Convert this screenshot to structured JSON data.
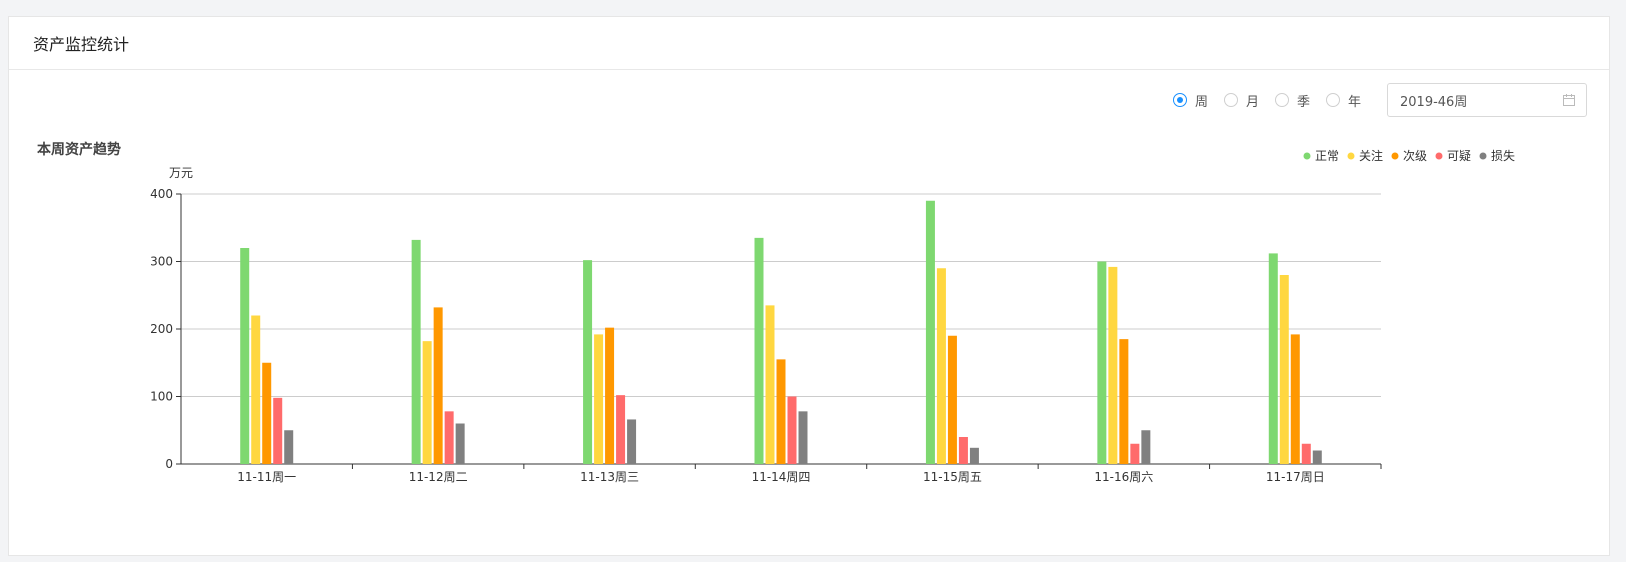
{
  "card": {
    "title": "资产监控统计"
  },
  "toolbar": {
    "period_options": [
      {
        "label": "周",
        "checked": true
      },
      {
        "label": "月",
        "checked": false
      },
      {
        "label": "季",
        "checked": false
      },
      {
        "label": "年",
        "checked": false
      }
    ],
    "date_value": "2019-46周"
  },
  "section": {
    "title": "本周资产趋势"
  },
  "chart_data": {
    "type": "bar",
    "ylabel": "万元",
    "ylim": [
      0,
      400
    ],
    "yticks": [
      0,
      100,
      200,
      300,
      400
    ],
    "categories": [
      "11-11周一",
      "11-12周二",
      "11-13周三",
      "11-14周四",
      "11-15周五",
      "11-16周六",
      "11-17周日"
    ],
    "legend_position": "top-right",
    "grid": true,
    "series": [
      {
        "name": "正常",
        "color": "#7ed870",
        "values": [
          320,
          332,
          302,
          335,
          390,
          300,
          312
        ]
      },
      {
        "name": "关注",
        "color": "#ffd740",
        "values": [
          220,
          182,
          192,
          235,
          290,
          292,
          280
        ]
      },
      {
        "name": "次级",
        "color": "#ff9800",
        "values": [
          150,
          232,
          202,
          155,
          190,
          185,
          192
        ]
      },
      {
        "name": "可疑",
        "color": "#ff6b6b",
        "values": [
          98,
          78,
          102,
          100,
          40,
          30,
          30
        ]
      },
      {
        "name": "损失",
        "color": "#808080",
        "values": [
          50,
          60,
          66,
          78,
          24,
          50,
          20
        ]
      }
    ]
  }
}
